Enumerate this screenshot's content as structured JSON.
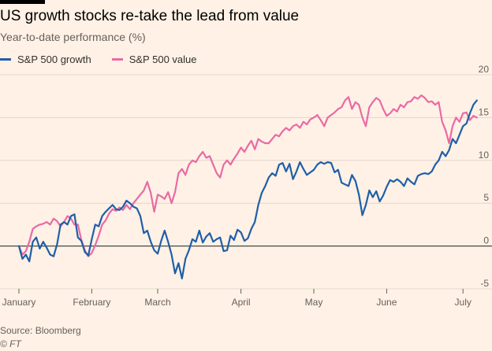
{
  "title": "US growth stocks re-take the lead from value",
  "subtitle": "Year-to-date performance (%)",
  "source": "Source: Bloomberg",
  "credit": "© FT",
  "colors": {
    "growth": "#1F5FA8",
    "value": "#E96AA5",
    "grid": "#E3D6CB",
    "zero": "#4A4542",
    "background": "#FFF1E5"
  },
  "chart_data": {
    "type": "line",
    "x_type": "trading-day",
    "x_range": [
      0,
      130
    ],
    "month_ticks": [
      {
        "label": "January",
        "x": 0
      },
      {
        "label": "February",
        "x": 21
      },
      {
        "label": "March",
        "x": 40
      },
      {
        "label": "April",
        "x": 64
      },
      {
        "label": "May",
        "x": 85
      },
      {
        "label": "June",
        "x": 106
      },
      {
        "label": "July",
        "x": 128
      }
    ],
    "ylim": [
      -5,
      20
    ],
    "yticks": [
      20,
      15,
      10,
      5,
      0,
      -5
    ],
    "y_axis_side": "right",
    "grid": true,
    "legend_position": "top-left",
    "series": [
      {
        "name": "S&P 500 growth",
        "color": "#1F5FA8",
        "values": [
          0,
          -1.5,
          -1,
          -1.8,
          0.5,
          1,
          -0.3,
          0.5,
          -0.2,
          -1,
          -1.2,
          0.2,
          2.5,
          2.8,
          2.5,
          3.5,
          3.7,
          1,
          0.6,
          -0.7,
          -1.1,
          0.8,
          2.5,
          2.3,
          3.5,
          4,
          4.4,
          4.8,
          4.3,
          4.2,
          4.6,
          5.3,
          5,
          4.6,
          4.4,
          3.5,
          1.5,
          1.8,
          0.5,
          -0.5,
          -0.9,
          0.6,
          1.8,
          0.5,
          -1,
          -3.2,
          -2,
          -3.8,
          -1.5,
          -0.5,
          0.8,
          0.5,
          1.8,
          0.4,
          1.1,
          1.5,
          0.5,
          0.8,
          1,
          -0.6,
          -0.5,
          1.2,
          0.7,
          1.9,
          1.6,
          0.6,
          0.9,
          2,
          2.8,
          4.8,
          6.2,
          7,
          8,
          8.5,
          8.2,
          9.5,
          9.7,
          8.7,
          9.6,
          7.8,
          8.7,
          9.8,
          9,
          8.3,
          8.6,
          8.9,
          9.5,
          9.8,
          9.6,
          9.8,
          9.7,
          8.6,
          8.9,
          7.4,
          7.2,
          7,
          8.3,
          7.6,
          6,
          3.6,
          4.8,
          6.5,
          5.7,
          6.4,
          5.2,
          5.9,
          6.9,
          7.7,
          7.5,
          7.8,
          7.5,
          7,
          7.9,
          7.5,
          7.2,
          8.2,
          8.4,
          8.5,
          8.4,
          8.7,
          9.5,
          10,
          11,
          10.5,
          11.2,
          12.5,
          12,
          13,
          14,
          14.3,
          15.5,
          16.5,
          17
        ]
      },
      {
        "name": "S&P 500 value",
        "color": "#E96AA5",
        "values": [
          0,
          -1,
          -0.6,
          0.5,
          2,
          2.3,
          2.5,
          2.6,
          2.8,
          2.5,
          3.2,
          2.9,
          2.3,
          2.8,
          3.5,
          3.2,
          2.5,
          2.5,
          0.7,
          -0.5,
          -1.2,
          -0.8,
          0.1,
          1.2,
          2.5,
          3,
          3.8,
          4.3,
          4.1,
          4.5,
          4.2,
          4.8,
          4.3,
          5,
          5.5,
          6,
          6.5,
          7.5,
          6.2,
          4,
          6,
          5.8,
          5.5,
          6.3,
          5,
          6.3,
          8.5,
          9,
          8.3,
          9.5,
          10,
          9.8,
          10.5,
          11,
          10.3,
          10.5,
          9.5,
          8.5,
          8,
          9.5,
          10,
          9.5,
          10.2,
          10.8,
          11.5,
          11,
          11.7,
          12.3,
          11.3,
          12.5,
          12.2,
          12,
          12,
          12.5,
          13,
          12.8,
          13.4,
          13.8,
          13.5,
          14,
          14.2,
          13.8,
          14.5,
          14.2,
          14.8,
          15,
          15.3,
          14.7,
          14,
          15,
          15.3,
          15.6,
          16,
          16.2,
          17,
          17.4,
          16,
          16.8,
          16.5,
          15,
          14,
          16.2,
          16.8,
          17.3,
          17,
          16,
          15.2,
          15.5,
          16,
          15.7,
          16.5,
          16.2,
          16.8,
          16.9,
          17.4,
          17.2,
          17.6,
          17.3,
          16.8,
          16.9,
          16.5,
          16.8,
          14.5,
          13.5,
          12,
          14,
          15,
          14.5,
          15.5,
          15.6,
          14.7,
          15.2,
          15
        ]
      }
    ]
  }
}
